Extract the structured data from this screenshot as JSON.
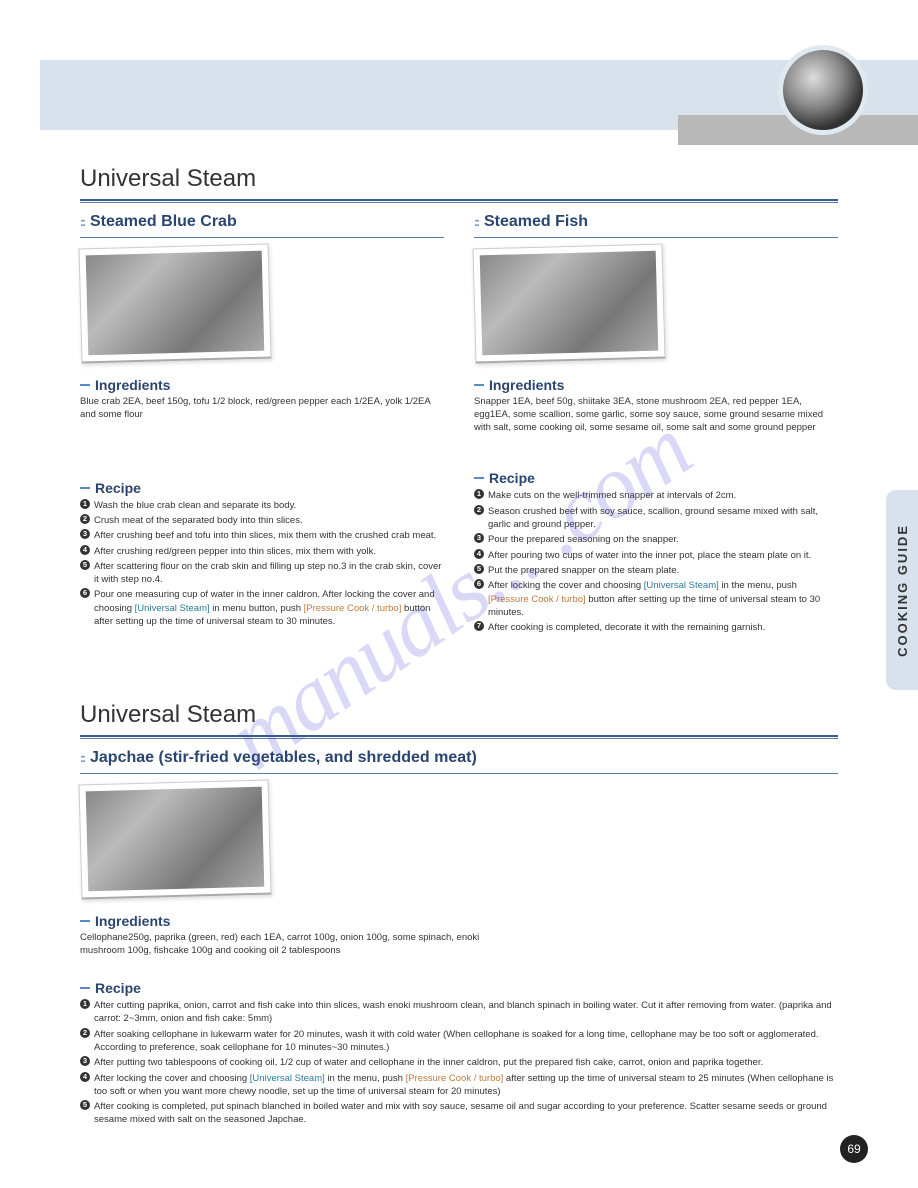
{
  "page_number": "69",
  "side_tab": "COOKING GUIDE",
  "watermark": "manuals... .com",
  "section1": {
    "title": "Universal Steam",
    "recipe_a": {
      "title": "Steamed Blue Crab",
      "ingredients_head": "Ingredients",
      "ingredients": "Blue crab 2EA, beef 150g, tofu 1/2 block, red/green pepper each 1/2EA, yolk 1/2EA and some flour",
      "recipe_head": "Recipe",
      "steps": [
        "Wash the blue crab clean and separate its body.",
        "Crush meat of the separated body into thin slices.",
        "After crushing beef and tofu into thin slices, mix them with the crushed crab meat.",
        "After crushing red/green pepper into thin slices, mix them with yolk.",
        "After scattering flour on the crab skin and filling up step no.3 in the crab skin, cover it with step no.4.",
        "Pour one measuring cup of water in the inner caldron. After locking the cover and choosing <span class='link-like'>[Universal Steam]</span> in menu button, push <span class='link-orange'>[Pressure Cook / turbo]</span> button after setting up the time of universal steam to 30 minutes."
      ]
    },
    "recipe_b": {
      "title": "Steamed Fish",
      "ingredients_head": "Ingredients",
      "ingredients": "Snapper 1EA, beef 50g, shiitake 3EA, stone mushroom 2EA, red pepper 1EA, egg1EA, some scallion, some garlic, some soy sauce, some ground sesame mixed with salt, some cooking oil, some sesame oil, some salt and some ground pepper",
      "recipe_head": "Recipe",
      "steps": [
        "Make cuts on the well-trimmed snapper at intervals of 2cm.",
        "Season crushed beef with soy sauce, scallion, ground sesame mixed with salt, garlic and ground pepper.",
        "Pour the prepared seasoning on the snapper.",
        "After pouring two cups of water into the inner pot, place the steam plate on it.",
        "Put the prepared snapper on the steam plate.",
        "After locking the cover and choosing <span class='link-like'>[Universal Steam]</span> in the menu, push <span class='link-orange'>[Pressure Cook / turbo]</span> button after setting up the time of universal steam to 30 minutes.",
        "After cooking is completed, decorate it with the remaining garnish."
      ]
    }
  },
  "section2": {
    "title": "Universal Steam",
    "recipe": {
      "title": "Japchae (stir-fried vegetables, and shredded meat)",
      "ingredients_head": "Ingredients",
      "ingredients": "Cellophane250g, paprika (green, red) each 1EA, carrot 100g, onion 100g, some spinach, enoki mushroom 100g, fishcake 100g and cooking oil 2 tablespoons",
      "recipe_head": "Recipe",
      "steps": [
        "After cutting paprika, onion, carrot and fish cake into thin slices, wash enoki mushroom clean, and blanch spinach in boiling water. Cut it after removing from water. (paprika and carrot: 2~3mm, onion and fish cake: 5mm)",
        "After soaking cellophane in lukewarm water for 20 minutes, wash it with cold water (When cellophane is soaked for a long time, cellophane may be too soft or agglomerated. According to preference, soak cellophane for 10 minutes~30 minutes.)",
        "After putting two tablespoons of cooking oil, 1/2 cup of water and cellophane in the inner caldron, put the prepared fish cake, carrot, onion and paprika together.",
        "After locking the cover and choosing <span class='link-like'>[Universal Steam]</span> in the menu, push <span class='link-orange'>[Pressure Cook / turbo]</span> after setting up the time of universal steam to 25 minutes (When cellophane is too soft or when you want more chewy noodle, set up the time of universal steam for 20 minutes)",
        "After cooking is completed, put spinach blanched in boiled water and mix with soy sauce, sesame oil and sugar according to your preference. Scatter sesame seeds or ground sesame mixed with salt on the seasoned Japchae."
      ]
    }
  }
}
